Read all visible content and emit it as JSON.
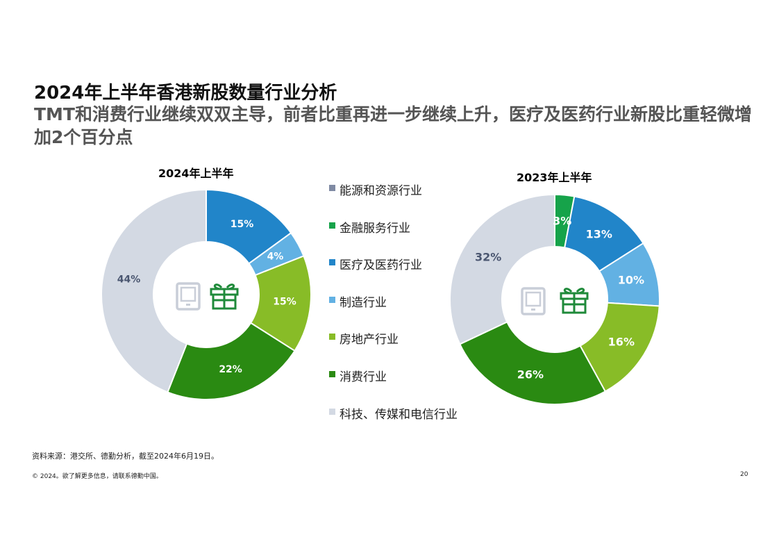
{
  "page": {
    "title": "2024年上半年香港新股数量行业分析",
    "subtitle": "TMT和消费行业继续双双主导，前者比重再进一步继续上升，医疗及医药行业新股比重轻微增加2个百分点",
    "source": "资料来源：港交所、德勤分析，截至2024年6月19日。",
    "copyright": "© 2024。欲了解更多信息，请联系德勤中国。",
    "page_number": "20"
  },
  "icons": [
    "tablet-icon",
    "gift-icon"
  ],
  "legend": [
    {
      "label": "能源和资源行业",
      "color": "#7f8aa3"
    },
    {
      "label": "金融服务行业",
      "color": "#16a34a"
    },
    {
      "label": "医疗及医药行业",
      "color": "#2185c9"
    },
    {
      "label": "制造行业",
      "color": "#62b1e3"
    },
    {
      "label": "房地产行业",
      "color": "#88bc27"
    },
    {
      "label": "消费行业",
      "color": "#2a8a12"
    },
    {
      "label": "科技、传媒和电信行业",
      "color": "#d3d9e3"
    }
  ],
  "chart_data": [
    {
      "type": "pie",
      "title": "2024年上半年",
      "slices": [
        {
          "category": "医疗及医药行业",
          "value": 15,
          "label": "15%",
          "color": "#2185c9",
          "label_color": "#ffffff"
        },
        {
          "category": "制造行业",
          "value": 4,
          "label": "4%",
          "color": "#62b1e3",
          "label_color": "#ffffff"
        },
        {
          "category": "房地产行业",
          "value": 15,
          "label": "15%",
          "color": "#88bc27",
          "label_color": "#ffffff"
        },
        {
          "category": "消费行业",
          "value": 22,
          "label": "22%",
          "color": "#2a8a12",
          "label_color": "#ffffff"
        },
        {
          "category": "科技、传媒和电信行业",
          "value": 44,
          "label": "44%",
          "color": "#d3d9e3",
          "label_color": "#4a5670"
        }
      ]
    },
    {
      "type": "pie",
      "title": "2023年上半年",
      "slices": [
        {
          "category": "金融服务行业",
          "value": 3,
          "label": "3%",
          "color": "#16a34a",
          "label_color": "#ffffff"
        },
        {
          "category": "医疗及医药行业",
          "value": 13,
          "label": "13%",
          "color": "#2185c9",
          "label_color": "#ffffff"
        },
        {
          "category": "制造行业",
          "value": 10,
          "label": "10%",
          "color": "#62b1e3",
          "label_color": "#ffffff"
        },
        {
          "category": "房地产行业",
          "value": 16,
          "label": "16%",
          "color": "#88bc27",
          "label_color": "#ffffff"
        },
        {
          "category": "消费行业",
          "value": 26,
          "label": "26%",
          "color": "#2a8a12",
          "label_color": "#ffffff"
        },
        {
          "category": "科技、传媒和电信行业",
          "value": 32,
          "label": "32%",
          "color": "#d3d9e3",
          "label_color": "#4a5670"
        }
      ]
    }
  ]
}
